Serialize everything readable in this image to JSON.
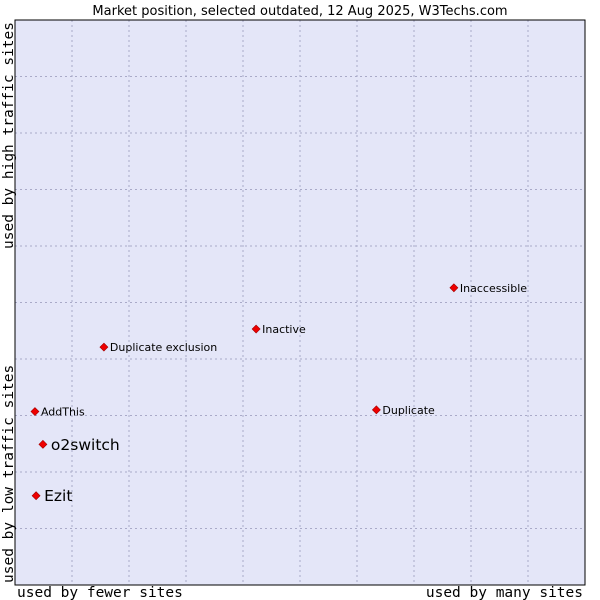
{
  "chart_data": {
    "type": "scatter",
    "title": "Market position, selected outdated, 12 Aug 2025, W3Techs.com",
    "xlabel_left": "used by fewer sites",
    "xlabel_right": "used by many sites",
    "ylabel_low": "used by low traffic sites",
    "ylabel_high": "used by high traffic sites",
    "grid": true,
    "colors": {
      "plot_background": "#e4e6f8",
      "grid": "#a9aac8",
      "marker": "#ee0000",
      "frame": "#000000"
    },
    "points": [
      {
        "label": "Inaccessible",
        "x": 0.77,
        "y": 0.526,
        "emphasis": false
      },
      {
        "label": "Inactive",
        "x": 0.423,
        "y": 0.453,
        "emphasis": false
      },
      {
        "label": "Duplicate exclusion",
        "x": 0.156,
        "y": 0.421,
        "emphasis": false
      },
      {
        "label": "Duplicate",
        "x": 0.634,
        "y": 0.31,
        "emphasis": false
      },
      {
        "label": "AddThis",
        "x": 0.035,
        "y": 0.307,
        "emphasis": false
      },
      {
        "label": "o2switch",
        "x": 0.049,
        "y": 0.249,
        "emphasis": true
      },
      {
        "label": "Ezit",
        "x": 0.037,
        "y": 0.158,
        "emphasis": true
      }
    ]
  }
}
